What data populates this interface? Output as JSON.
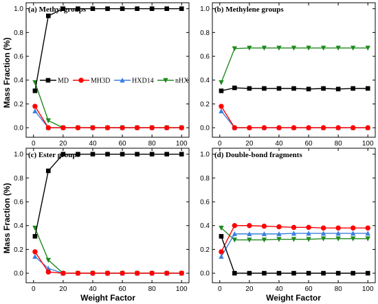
{
  "figure": {
    "xlabel": "Weight Factor",
    "ylabel": "Mass Fraction (%)"
  },
  "series_styles": [
    {
      "name": "MD",
      "color": "#000000",
      "marker": "square"
    },
    {
      "name": "MH3D",
      "color": "#ff0000",
      "marker": "circle"
    },
    {
      "name": "HXD14",
      "color": "#3b7fe0",
      "marker": "triangle-up"
    },
    {
      "name": "nHX",
      "color": "#1f8a1f",
      "marker": "triangle-down"
    }
  ],
  "chart_data": [
    {
      "type": "line",
      "title": "(a) Methyl groups",
      "xlabel": "Weight Factor",
      "ylabel": "Mass Fraction (%)",
      "xlim": [
        -5,
        105
      ],
      "ylim": [
        -0.08,
        1.05
      ],
      "xticks": [
        0,
        20,
        40,
        60,
        80,
        100
      ],
      "yticks": [
        0.0,
        0.2,
        0.4,
        0.6,
        0.8,
        1.0
      ],
      "legend": "inside-left",
      "x": [
        1,
        10,
        20,
        30,
        40,
        50,
        60,
        70,
        80,
        90,
        100
      ],
      "series": [
        {
          "name": "MD",
          "values": [
            0.31,
            0.94,
            1.0,
            1.0,
            1.0,
            1.0,
            1.0,
            1.0,
            1.0,
            1.0,
            1.0
          ]
        },
        {
          "name": "MH3D",
          "values": [
            0.18,
            0.0,
            0.0,
            0.0,
            0.0,
            0.0,
            0.0,
            0.0,
            0.0,
            0.0,
            0.0
          ]
        },
        {
          "name": "HXD14",
          "values": [
            0.14,
            0.0,
            0.0,
            0.0,
            0.0,
            0.0,
            0.0,
            0.0,
            0.0,
            0.0,
            0.0
          ]
        },
        {
          "name": "nHX",
          "values": [
            0.38,
            0.06,
            0.0,
            0.0,
            0.0,
            0.0,
            0.0,
            0.0,
            0.0,
            0.0,
            0.0
          ]
        }
      ]
    },
    {
      "type": "line",
      "title": "(b) Methylene groups",
      "xlabel": "Weight Factor",
      "ylabel": "Mass Fraction (%)",
      "xlim": [
        -5,
        105
      ],
      "ylim": [
        -0.08,
        1.05
      ],
      "xticks": [
        0,
        20,
        40,
        60,
        80,
        100
      ],
      "yticks": [
        0.0,
        0.2,
        0.4,
        0.6,
        0.8,
        1.0
      ],
      "x": [
        1,
        10,
        20,
        30,
        40,
        50,
        60,
        70,
        80,
        90,
        100
      ],
      "series": [
        {
          "name": "MD",
          "values": [
            0.31,
            0.335,
            0.33,
            0.33,
            0.33,
            0.33,
            0.325,
            0.33,
            0.325,
            0.33,
            0.33
          ]
        },
        {
          "name": "MH3D",
          "values": [
            0.18,
            0.0,
            0.0,
            0.0,
            0.0,
            0.0,
            0.0,
            0.0,
            0.0,
            0.0,
            0.0
          ]
        },
        {
          "name": "HXD14",
          "values": [
            0.14,
            0.0,
            0.0,
            0.0,
            0.0,
            0.0,
            0.0,
            0.0,
            0.0,
            0.0,
            0.0
          ]
        },
        {
          "name": "nHX",
          "values": [
            0.38,
            0.665,
            0.67,
            0.67,
            0.67,
            0.67,
            0.67,
            0.67,
            0.67,
            0.67,
            0.67
          ]
        }
      ]
    },
    {
      "type": "line",
      "title": "(c) Ester groups",
      "xlabel": "Weight Factor",
      "ylabel": "Mass Fraction (%)",
      "xlim": [
        -5,
        105
      ],
      "ylim": [
        -0.08,
        1.05
      ],
      "xticks": [
        0,
        20,
        40,
        60,
        80,
        100
      ],
      "yticks": [
        0.0,
        0.2,
        0.4,
        0.6,
        0.8,
        1.0
      ],
      "x": [
        1,
        10,
        20,
        30,
        40,
        50,
        60,
        70,
        80,
        90,
        100
      ],
      "series": [
        {
          "name": "MD",
          "values": [
            0.31,
            0.86,
            1.0,
            1.0,
            1.0,
            1.0,
            1.0,
            1.0,
            1.0,
            1.0,
            1.0
          ]
        },
        {
          "name": "MH3D",
          "values": [
            0.18,
            0.01,
            0.0,
            0.0,
            0.0,
            0.0,
            0.0,
            0.0,
            0.0,
            0.0,
            0.0
          ]
        },
        {
          "name": "HXD14",
          "values": [
            0.14,
            0.04,
            0.0,
            0.0,
            0.0,
            0.0,
            0.0,
            0.0,
            0.0,
            0.0,
            0.0
          ]
        },
        {
          "name": "nHX",
          "values": [
            0.38,
            0.11,
            0.0,
            0.0,
            0.0,
            0.0,
            0.0,
            0.0,
            0.0,
            0.0,
            0.0
          ]
        }
      ]
    },
    {
      "type": "line",
      "title": "(d) Double-bond fragments",
      "xlabel": "Weight Factor",
      "ylabel": "Mass Fraction (%)",
      "xlim": [
        -5,
        105
      ],
      "ylim": [
        -0.08,
        1.05
      ],
      "xticks": [
        0,
        20,
        40,
        60,
        80,
        100
      ],
      "yticks": [
        0.0,
        0.2,
        0.4,
        0.6,
        0.8,
        1.0
      ],
      "x": [
        1,
        10,
        20,
        30,
        40,
        50,
        60,
        70,
        80,
        90,
        100
      ],
      "series": [
        {
          "name": "MD",
          "values": [
            0.31,
            0.0,
            0.0,
            0.0,
            0.0,
            0.0,
            0.0,
            0.0,
            0.0,
            0.0,
            0.0
          ]
        },
        {
          "name": "MH3D",
          "values": [
            0.18,
            0.4,
            0.4,
            0.395,
            0.39,
            0.385,
            0.385,
            0.38,
            0.38,
            0.38,
            0.38
          ]
        },
        {
          "name": "HXD14",
          "values": [
            0.14,
            0.33,
            0.33,
            0.33,
            0.33,
            0.335,
            0.335,
            0.335,
            0.335,
            0.335,
            0.335
          ]
        },
        {
          "name": "nHX",
          "values": [
            0.38,
            0.28,
            0.28,
            0.28,
            0.285,
            0.285,
            0.285,
            0.29,
            0.29,
            0.29,
            0.29
          ]
        }
      ]
    }
  ]
}
